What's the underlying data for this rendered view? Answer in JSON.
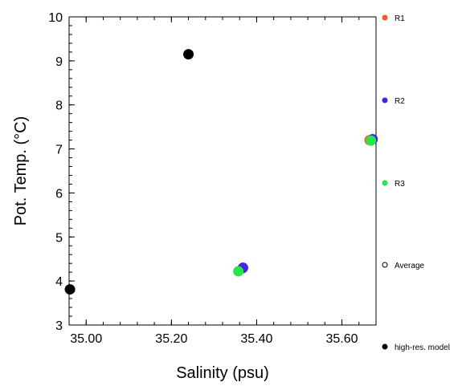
{
  "chart_data": {
    "type": "scatter",
    "xlabel": "Salinity (psu)",
    "ylabel": "Pot. Temp. (°C)",
    "xlim": [
      34.96,
      35.68
    ],
    "ylim": [
      3,
      10
    ],
    "x_ticks": [
      "35.00",
      "35.20",
      "35.40",
      "35.60"
    ],
    "x_tick_values": [
      35.0,
      35.2,
      35.4,
      35.6
    ],
    "y_ticks": [
      "3",
      "4",
      "5",
      "6",
      "7",
      "8",
      "9",
      "10"
    ],
    "y_tick_values": [
      3,
      4,
      5,
      6,
      7,
      8,
      9,
      10
    ],
    "grid": false,
    "legend_position": "right",
    "series": [
      {
        "name": "R1",
        "color": "#f05a23",
        "marker": "filled-circle",
        "points": [
          [
            35.665,
            7.2
          ],
          [
            35.367,
            4.29
          ]
        ]
      },
      {
        "name": "R2",
        "color": "#4a21e6",
        "marker": "filled-circle",
        "points": [
          [
            35.672,
            7.22
          ],
          [
            35.368,
            4.3
          ]
        ]
      },
      {
        "name": "R3",
        "color": "#22e84a",
        "marker": "filled-circle",
        "points": [
          [
            35.668,
            7.19
          ],
          [
            35.357,
            4.22
          ]
        ]
      },
      {
        "name": "Average",
        "color": "#000000",
        "marker": "open-circle",
        "points": []
      },
      {
        "name": "high-res. model",
        "color": "#000000",
        "marker": "filled-circle",
        "points": [
          [
            35.24,
            9.15
          ],
          [
            34.962,
            3.81
          ]
        ]
      }
    ]
  }
}
